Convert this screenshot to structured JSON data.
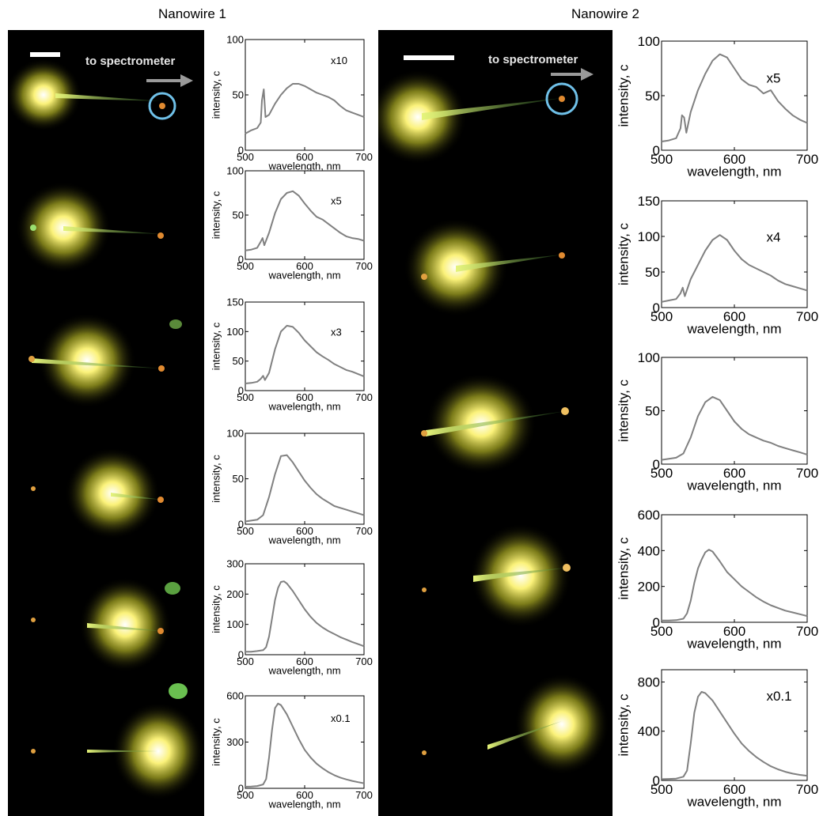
{
  "figure": {
    "columns": [
      {
        "title": "Nanowire 1",
        "scale_bar_label": "to spectrometer"
      },
      {
        "title": "Nanowire 2",
        "scale_bar_label": "to spectrometer"
      }
    ],
    "colors": {
      "curve": "#808080",
      "background": "#000000",
      "glow": "#f7f04a",
      "circle": "#6fc0e8",
      "arrow": "#9a9a9a"
    }
  },
  "chart_data": [
    {
      "type": "line",
      "panel": "nanowire-1-row-1",
      "xlabel": "wavelength, nm",
      "ylabel": "intensity, c",
      "xlim": [
        500,
        700
      ],
      "ylim": [
        0,
        100
      ],
      "xticks": [
        500,
        600,
        700
      ],
      "yticks": [
        0,
        50,
        100
      ],
      "multiplier": "x10",
      "x": [
        500,
        510,
        520,
        526,
        528,
        531,
        534,
        540,
        550,
        560,
        570,
        580,
        590,
        600,
        610,
        620,
        630,
        640,
        650,
        660,
        670,
        680,
        690,
        700
      ],
      "y": [
        15,
        18,
        20,
        25,
        45,
        55,
        30,
        32,
        42,
        50,
        56,
        60,
        60,
        58,
        55,
        52,
        50,
        48,
        45,
        40,
        36,
        34,
        32,
        30
      ]
    },
    {
      "type": "line",
      "panel": "nanowire-1-row-2",
      "xlabel": "wavelength, nm",
      "ylabel": "intensity, c",
      "xlim": [
        500,
        700
      ],
      "ylim": [
        0,
        100
      ],
      "xticks": [
        500,
        600,
        700
      ],
      "yticks": [
        0,
        50,
        100
      ],
      "multiplier": "x5",
      "x": [
        500,
        510,
        520,
        526,
        529,
        532,
        540,
        550,
        560,
        570,
        580,
        590,
        600,
        610,
        620,
        630,
        640,
        650,
        660,
        670,
        680,
        690,
        700
      ],
      "y": [
        10,
        11,
        13,
        20,
        24,
        16,
        30,
        52,
        68,
        75,
        77,
        72,
        63,
        55,
        48,
        45,
        40,
        35,
        30,
        26,
        24,
        23,
        21
      ]
    },
    {
      "type": "line",
      "panel": "nanowire-1-row-3",
      "xlabel": "wavelength, nm",
      "ylabel": "intensity, c",
      "xlim": [
        500,
        700
      ],
      "ylim": [
        0,
        150
      ],
      "xticks": [
        500,
        600,
        700
      ],
      "yticks": [
        0,
        50,
        100,
        150
      ],
      "multiplier": "x3",
      "x": [
        500,
        510,
        520,
        526,
        530,
        533,
        540,
        550,
        560,
        570,
        580,
        590,
        600,
        610,
        620,
        630,
        640,
        650,
        660,
        670,
        680,
        690,
        700
      ],
      "y": [
        12,
        13,
        15,
        20,
        25,
        18,
        30,
        70,
        100,
        110,
        108,
        98,
        85,
        75,
        65,
        58,
        52,
        45,
        40,
        35,
        32,
        28,
        24
      ]
    },
    {
      "type": "line",
      "panel": "nanowire-1-row-4",
      "xlabel": "wavelength, nm",
      "ylabel": "intensity, c",
      "xlim": [
        500,
        700
      ],
      "ylim": [
        0,
        100
      ],
      "xticks": [
        500,
        600,
        700
      ],
      "yticks": [
        0,
        50,
        100
      ],
      "x": [
        500,
        510,
        520,
        530,
        540,
        550,
        560,
        570,
        580,
        590,
        600,
        610,
        620,
        630,
        640,
        650,
        660,
        670,
        680,
        690,
        700
      ],
      "y": [
        3,
        4,
        5,
        10,
        30,
        55,
        75,
        76,
        68,
        58,
        48,
        40,
        33,
        28,
        24,
        20,
        18,
        16,
        14,
        12,
        10
      ]
    },
    {
      "type": "line",
      "panel": "nanowire-1-row-5",
      "xlabel": "wavelength, nm",
      "ylabel": "intensity, c",
      "xlim": [
        500,
        700
      ],
      "ylim": [
        0,
        300
      ],
      "xticks": [
        500,
        600,
        700
      ],
      "yticks": [
        0,
        100,
        200,
        300
      ],
      "x": [
        500,
        510,
        520,
        530,
        535,
        540,
        545,
        550,
        555,
        560,
        565,
        570,
        580,
        590,
        600,
        610,
        620,
        630,
        640,
        650,
        660,
        670,
        680,
        690,
        700
      ],
      "y": [
        10,
        10,
        12,
        15,
        25,
        60,
        120,
        180,
        220,
        240,
        242,
        235,
        210,
        180,
        150,
        125,
        105,
        90,
        78,
        68,
        58,
        50,
        42,
        35,
        28
      ]
    },
    {
      "type": "line",
      "panel": "nanowire-1-row-6",
      "xlabel": "wavelength, nm",
      "ylabel": "intensity, c",
      "xlim": [
        500,
        700
      ],
      "ylim": [
        0,
        600
      ],
      "xticks": [
        500,
        600,
        700
      ],
      "yticks": [
        0,
        300,
        600
      ],
      "multiplier": "x0.1",
      "x": [
        500,
        510,
        520,
        530,
        535,
        540,
        545,
        550,
        555,
        560,
        570,
        580,
        590,
        600,
        610,
        620,
        630,
        640,
        650,
        660,
        670,
        680,
        690,
        700
      ],
      "y": [
        10,
        12,
        15,
        25,
        60,
        200,
        380,
        520,
        550,
        540,
        480,
        400,
        320,
        250,
        200,
        160,
        130,
        105,
        85,
        70,
        58,
        48,
        40,
        33
      ]
    },
    {
      "type": "line",
      "panel": "nanowire-2-row-1",
      "xlabel": "wavelength, nm",
      "ylabel": "intensity, c",
      "xlim": [
        500,
        700
      ],
      "ylim": [
        0,
        100
      ],
      "xticks": [
        500,
        600,
        700
      ],
      "yticks": [
        0,
        50,
        100
      ],
      "multiplier": "x5",
      "x": [
        500,
        510,
        520,
        526,
        528,
        531,
        534,
        540,
        550,
        560,
        570,
        580,
        590,
        600,
        610,
        620,
        630,
        640,
        650,
        660,
        670,
        680,
        690,
        700
      ],
      "y": [
        8,
        9,
        11,
        20,
        32,
        30,
        16,
        35,
        55,
        70,
        82,
        88,
        85,
        75,
        65,
        60,
        58,
        52,
        55,
        45,
        38,
        32,
        28,
        25
      ]
    },
    {
      "type": "line",
      "panel": "nanowire-2-row-2",
      "xlabel": "wavelength, nm",
      "ylabel": "intensity, c",
      "xlim": [
        500,
        700
      ],
      "ylim": [
        0,
        150
      ],
      "xticks": [
        500,
        600,
        700
      ],
      "yticks": [
        0,
        50,
        100,
        150
      ],
      "multiplier": "x4",
      "x": [
        500,
        510,
        520,
        526,
        529,
        532,
        540,
        550,
        560,
        570,
        580,
        590,
        600,
        610,
        620,
        630,
        640,
        650,
        660,
        670,
        680,
        690,
        700
      ],
      "y": [
        8,
        10,
        12,
        20,
        28,
        16,
        40,
        60,
        80,
        95,
        102,
        95,
        80,
        68,
        60,
        55,
        50,
        45,
        38,
        33,
        30,
        27,
        24
      ]
    },
    {
      "type": "line",
      "panel": "nanowire-2-row-3",
      "xlabel": "wavelength, nm",
      "ylabel": "intensity, c",
      "xlim": [
        500,
        700
      ],
      "ylim": [
        0,
        100
      ],
      "xticks": [
        500,
        600,
        700
      ],
      "yticks": [
        0,
        50,
        100
      ],
      "x": [
        500,
        510,
        520,
        530,
        540,
        550,
        560,
        570,
        580,
        590,
        600,
        610,
        620,
        630,
        640,
        650,
        660,
        670,
        680,
        690,
        700
      ],
      "y": [
        4,
        5,
        6,
        10,
        25,
        45,
        58,
        63,
        60,
        50,
        40,
        33,
        28,
        25,
        22,
        20,
        17,
        15,
        13,
        11,
        9
      ]
    },
    {
      "type": "line",
      "panel": "nanowire-2-row-4",
      "xlabel": "wavelength, nm",
      "ylabel": "intensity, c",
      "xlim": [
        500,
        700
      ],
      "ylim": [
        0,
        600
      ],
      "xticks": [
        500,
        600,
        700
      ],
      "yticks": [
        0,
        200,
        400,
        600
      ],
      "x": [
        500,
        510,
        520,
        530,
        535,
        540,
        545,
        550,
        555,
        560,
        565,
        570,
        580,
        590,
        600,
        610,
        620,
        630,
        640,
        650,
        660,
        670,
        680,
        690,
        700
      ],
      "y": [
        10,
        10,
        12,
        20,
        50,
        120,
        220,
        300,
        350,
        390,
        405,
        395,
        340,
        280,
        240,
        200,
        170,
        140,
        115,
        95,
        80,
        65,
        55,
        45,
        35
      ]
    },
    {
      "type": "line",
      "panel": "nanowire-2-row-5",
      "xlabel": "wavelength, nm",
      "ylabel": "intensity, c",
      "xlim": [
        500,
        700
      ],
      "ylim": [
        0,
        900
      ],
      "xticks": [
        500,
        600,
        700
      ],
      "yticks": [
        0,
        400,
        800
      ],
      "multiplier": "x0.1",
      "x": [
        500,
        510,
        520,
        530,
        535,
        540,
        545,
        550,
        555,
        560,
        570,
        580,
        590,
        600,
        610,
        620,
        630,
        640,
        650,
        660,
        670,
        680,
        690,
        700
      ],
      "y": [
        10,
        12,
        15,
        30,
        80,
        300,
        550,
        680,
        720,
        710,
        650,
        560,
        470,
        380,
        300,
        240,
        190,
        150,
        115,
        90,
        70,
        55,
        45,
        38
      ]
    }
  ]
}
